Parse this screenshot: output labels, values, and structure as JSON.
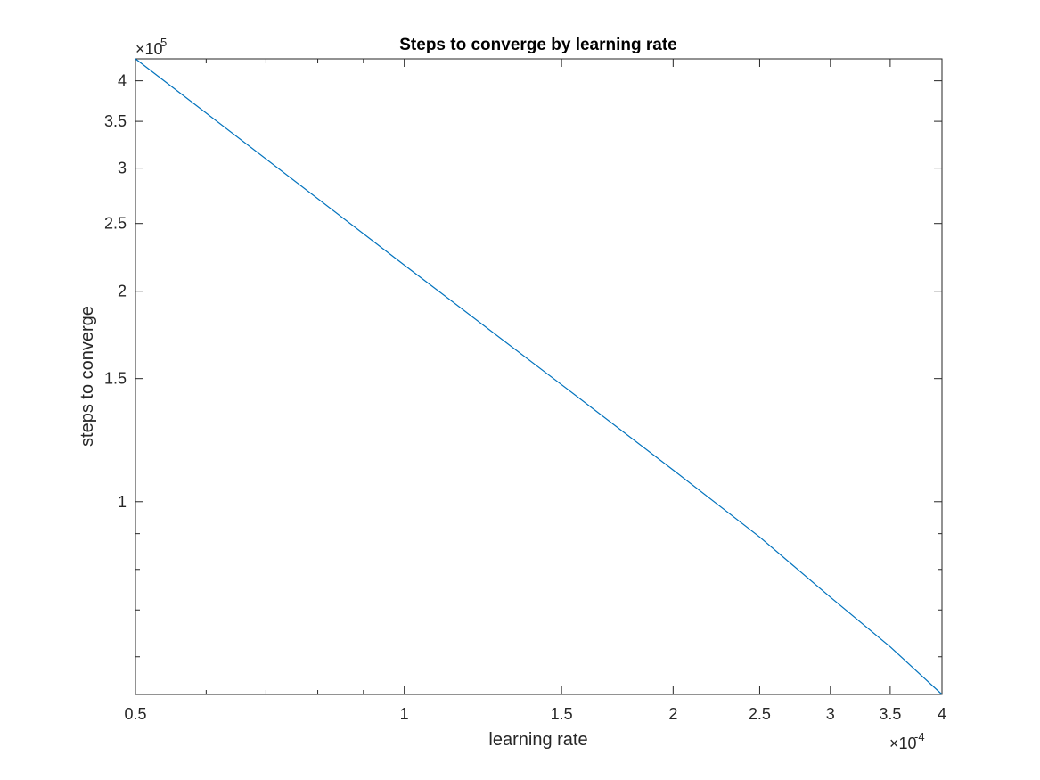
{
  "chart_data": {
    "type": "line",
    "title": "Steps to converge by learning rate",
    "xlabel": "learning rate",
    "ylabel": "steps to converge",
    "x_scale": "log",
    "y_scale": "log",
    "x_multiplier_label": "×10",
    "x_multiplier_exp": "-4",
    "y_multiplier_label": "×10",
    "y_multiplier_exp": "5",
    "xlim": [
      0.5,
      4
    ],
    "ylim": [
      0.53,
      4.3
    ],
    "x_ticks": [
      0.5,
      1,
      1.5,
      2,
      2.5,
      3,
      3.5,
      4
    ],
    "x_tick_labels": [
      "0.5",
      "1",
      "1.5",
      "2",
      "2.5",
      "3",
      "3.5",
      "4"
    ],
    "y_ticks": [
      1,
      1.5,
      2,
      2.5,
      3,
      3.5,
      4
    ],
    "y_tick_labels": [
      "1",
      "1.5",
      "2",
      "2.5",
      "3",
      "3.5",
      "4"
    ],
    "grid": false,
    "line_color": "#0072BD",
    "series": [
      {
        "x": [
          0.5,
          1,
          1.5,
          2,
          2.5,
          3,
          3.5,
          4
        ],
        "y": [
          4.3,
          2.18,
          1.47,
          1.11,
          0.89,
          0.73,
          0.62,
          0.53
        ]
      }
    ]
  }
}
